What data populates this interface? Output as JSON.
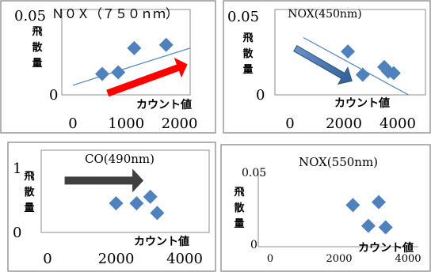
{
  "colors": {
    "marker": "#4F81BD",
    "trend": "#4F81BD",
    "arrow_red": "#FF0000",
    "arrow_blue": "#4F81BD",
    "arrow_dark": "#404040"
  },
  "chart_data": [
    {
      "type": "scatter",
      "title": "Ｎ０Ｘ（７５０ｎｍ）",
      "xlabel": "カウント値",
      "ylabel": "飛散量",
      "xlim": [
        0,
        2200
      ],
      "ylim": [
        0,
        0.05
      ],
      "xticks": [
        "0",
        "1000",
        "2000"
      ],
      "yticks": [
        "0",
        "0.05"
      ],
      "trendline": true,
      "points": [
        [
          550,
          0.013
        ],
        [
          850,
          0.014
        ],
        [
          1150,
          0.029
        ],
        [
          1750,
          0.031
        ]
      ],
      "trend": [
        [
          0,
          0.006
        ],
        [
          2200,
          0.029
        ]
      ],
      "arrow": {
        "color": "red",
        "from": [
          650,
          0.001
        ],
        "to": [
          2150,
          0.019
        ]
      }
    },
    {
      "type": "scatter",
      "title": "NOX(450nm)",
      "xlabel": "カウント値",
      "ylabel": "飛散量",
      "xlim": [
        0,
        4500
      ],
      "ylim": [
        0,
        0.05
      ],
      "xticks": [
        "0",
        "2000",
        "4000"
      ],
      "yticks": [
        "0",
        "0.05"
      ],
      "trendline": true,
      "points": [
        [
          2150,
          0.028
        ],
        [
          2700,
          0.013
        ],
        [
          3500,
          0.018
        ],
        [
          3650,
          0.015
        ],
        [
          3850,
          0.014
        ]
      ],
      "trend": [
        [
          500,
          0.037
        ],
        [
          4400,
          0.0
        ]
      ],
      "arrow": {
        "color": "blue",
        "from": [
          200,
          0.03
        ],
        "to": [
          2300,
          0.009
        ]
      }
    },
    {
      "type": "scatter",
      "title": "CO(490nm)",
      "xlabel": "カウント値",
      "ylabel": "飛散量",
      "xlim": [
        0,
        4000
      ],
      "ylim": [
        0,
        1
      ],
      "xticks": [
        "0",
        "2000",
        "4000"
      ],
      "yticks": [
        "0",
        "1"
      ],
      "trendline": false,
      "points": [
        [
          2000,
          0.45
        ],
        [
          2600,
          0.45
        ],
        [
          3000,
          0.55
        ],
        [
          3200,
          0.3
        ]
      ],
      "arrow": {
        "color": "dark",
        "from": [
          500,
          0.8
        ],
        "to": [
          2800,
          0.8
        ]
      }
    },
    {
      "type": "scatter",
      "title": "NOX(550nm)",
      "xlabel": "カウント値",
      "ylabel": "飛散量",
      "xlim": [
        0,
        4000
      ],
      "ylim": [
        0,
        0.05
      ],
      "xticks": [
        "0",
        "2000",
        "4000"
      ],
      "yticks": [
        "0",
        "0.05"
      ],
      "trendline": false,
      "points": [
        [
          2400,
          0.028
        ],
        [
          2850,
          0.014
        ],
        [
          3150,
          0.03
        ],
        [
          3350,
          0.013
        ]
      ]
    }
  ]
}
